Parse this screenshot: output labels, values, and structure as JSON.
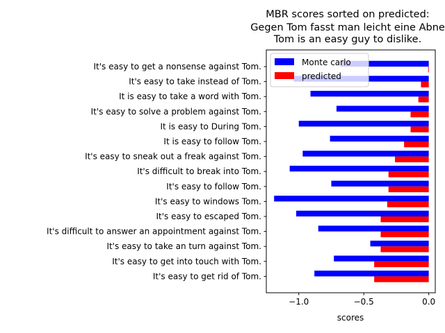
{
  "chart_data": {
    "type": "bar",
    "orientation": "horizontal",
    "title": [
      "MBR scores sorted on predicted:",
      "Gegen Tom fasst man leicht eine Abne",
      "Tom is an easy guy to dislike."
    ],
    "xlabel": "scores",
    "ylabel": "",
    "xlim": [
      -1.25,
      0.05
    ],
    "xticks": [
      -1.0,
      -0.5,
      0.0
    ],
    "xtick_labels": [
      "−1.0",
      "−0.5",
      "0.0"
    ],
    "categories": [
      "It's easy to get a nonsense against Tom.",
      "It's easy to take instead of Tom.",
      "It is easy to take a word with Tom.",
      "It's easy to solve a problem against Tom.",
      "It is easy to During Tom.",
      "It is easy to follow Tom.",
      "It's easy to sneak out a freak against Tom.",
      "It's difficult to break into Tom.",
      "It's easy to follow Tom.",
      "It's easy to windows Tom.",
      "It's easy to escaped Tom.",
      "It's difficult to answer an appointment against Tom.",
      "It's easy to take an turn against Tom.",
      "It's easy to get into touch with Tom.",
      "It's easy to get rid of Tom."
    ],
    "series": [
      {
        "name": "Monte carlo",
        "color": "#0000ff",
        "values": [
          -0.68,
          -1.04,
          -0.91,
          -0.71,
          -1.0,
          -0.76,
          -0.97,
          -1.07,
          -0.75,
          -1.19,
          -1.02,
          -0.85,
          -0.45,
          -0.73,
          -0.88
        ]
      },
      {
        "name": "predicted",
        "color": "#ff0000",
        "values": [
          -0.005,
          -0.06,
          -0.08,
          -0.14,
          -0.14,
          -0.19,
          -0.26,
          -0.31,
          -0.31,
          -0.32,
          -0.37,
          -0.37,
          -0.37,
          -0.42,
          -0.42
        ]
      }
    ],
    "legend": {
      "placement": "upper-left"
    },
    "grid": false
  }
}
